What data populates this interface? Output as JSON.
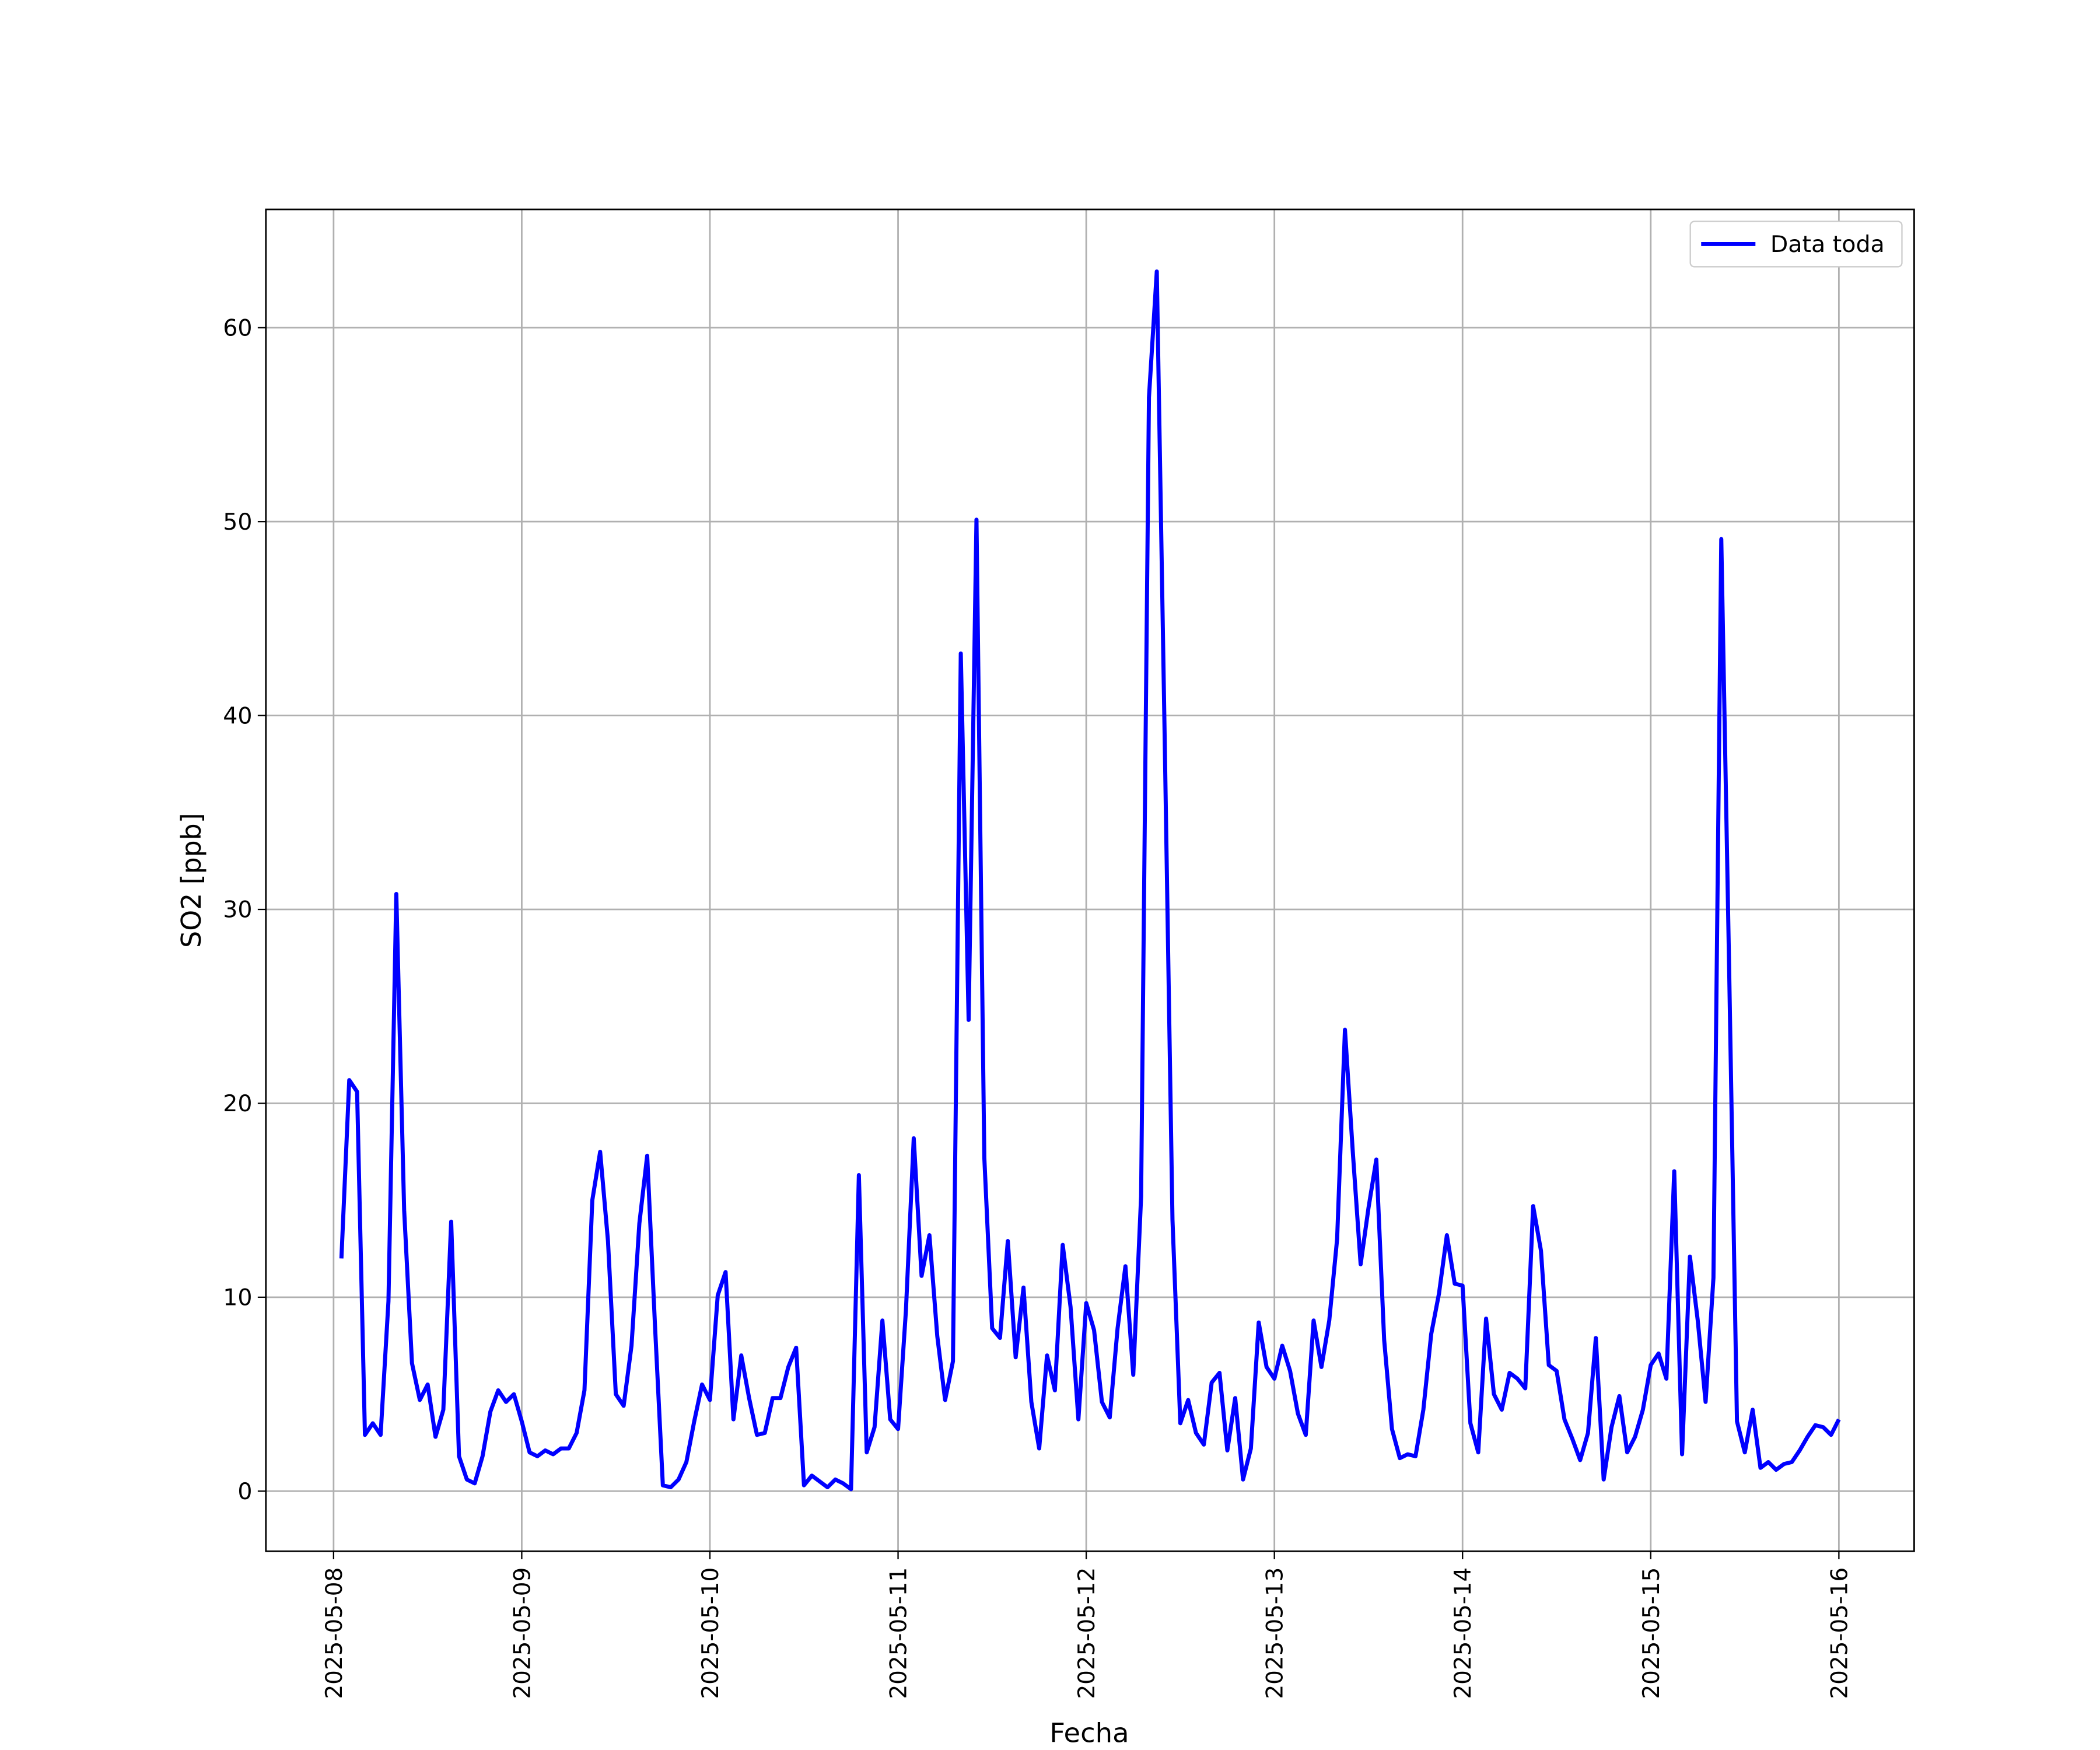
{
  "chart_data": {
    "type": "line",
    "xlabel": "Fecha",
    "ylabel": "SO2 [ppb]",
    "x": [
      "2025-05-08 01:00",
      "2025-05-08 02:00",
      "2025-05-08 03:00",
      "2025-05-08 04:00",
      "2025-05-08 05:00",
      "2025-05-08 06:00",
      "2025-05-08 07:00",
      "2025-05-08 08:00",
      "2025-05-08 09:00",
      "2025-05-08 10:00",
      "2025-05-08 11:00",
      "2025-05-08 12:00",
      "2025-05-08 13:00",
      "2025-05-08 14:00",
      "2025-05-08 15:00",
      "2025-05-08 16:00",
      "2025-05-08 17:00",
      "2025-05-08 18:00",
      "2025-05-08 19:00",
      "2025-05-08 20:00",
      "2025-05-08 21:00",
      "2025-05-08 22:00",
      "2025-05-08 23:00",
      "2025-05-09 00:00",
      "2025-05-09 01:00",
      "2025-05-09 02:00",
      "2025-05-09 03:00",
      "2025-05-09 04:00",
      "2025-05-09 05:00",
      "2025-05-09 06:00",
      "2025-05-09 07:00",
      "2025-05-09 08:00",
      "2025-05-09 09:00",
      "2025-05-09 10:00",
      "2025-05-09 11:00",
      "2025-05-09 12:00",
      "2025-05-09 13:00",
      "2025-05-09 14:00",
      "2025-05-09 15:00",
      "2025-05-09 16:00",
      "2025-05-09 17:00",
      "2025-05-09 18:00",
      "2025-05-09 19:00",
      "2025-05-09 20:00",
      "2025-05-09 21:00",
      "2025-05-09 22:00",
      "2025-05-09 23:00",
      "2025-05-10 00:00",
      "2025-05-10 01:00",
      "2025-05-10 02:00",
      "2025-05-10 03:00",
      "2025-05-10 04:00",
      "2025-05-10 05:00",
      "2025-05-10 06:00",
      "2025-05-10 07:00",
      "2025-05-10 08:00",
      "2025-05-10 09:00",
      "2025-05-10 10:00",
      "2025-05-10 11:00",
      "2025-05-10 12:00",
      "2025-05-10 13:00",
      "2025-05-10 14:00",
      "2025-05-10 15:00",
      "2025-05-10 16:00",
      "2025-05-10 17:00",
      "2025-05-10 18:00",
      "2025-05-10 19:00",
      "2025-05-10 20:00",
      "2025-05-10 21:00",
      "2025-05-10 22:00",
      "2025-05-10 23:00",
      "2025-05-11 00:00",
      "2025-05-11 01:00",
      "2025-05-11 02:00",
      "2025-05-11 03:00",
      "2025-05-11 04:00",
      "2025-05-11 05:00",
      "2025-05-11 06:00",
      "2025-05-11 07:00",
      "2025-05-11 08:00",
      "2025-05-11 09:00",
      "2025-05-11 10:00",
      "2025-05-11 11:00",
      "2025-05-11 12:00",
      "2025-05-11 13:00",
      "2025-05-11 14:00",
      "2025-05-11 15:00",
      "2025-05-11 16:00",
      "2025-05-11 17:00",
      "2025-05-11 18:00",
      "2025-05-11 19:00",
      "2025-05-11 20:00",
      "2025-05-11 21:00",
      "2025-05-11 22:00",
      "2025-05-11 23:00",
      "2025-05-12 00:00",
      "2025-05-12 01:00",
      "2025-05-12 02:00",
      "2025-05-12 03:00",
      "2025-05-12 04:00",
      "2025-05-12 05:00",
      "2025-05-12 06:00",
      "2025-05-12 07:00",
      "2025-05-12 08:00",
      "2025-05-12 09:00",
      "2025-05-12 10:00",
      "2025-05-12 11:00",
      "2025-05-12 12:00",
      "2025-05-12 13:00",
      "2025-05-12 14:00",
      "2025-05-12 15:00",
      "2025-05-12 16:00",
      "2025-05-12 17:00",
      "2025-05-12 18:00",
      "2025-05-12 19:00",
      "2025-05-12 20:00",
      "2025-05-12 21:00",
      "2025-05-12 22:00",
      "2025-05-12 23:00",
      "2025-05-13 00:00",
      "2025-05-13 01:00",
      "2025-05-13 02:00",
      "2025-05-13 03:00",
      "2025-05-13 04:00",
      "2025-05-13 05:00",
      "2025-05-13 06:00",
      "2025-05-13 07:00",
      "2025-05-13 08:00",
      "2025-05-13 09:00",
      "2025-05-13 10:00",
      "2025-05-13 11:00",
      "2025-05-13 12:00",
      "2025-05-13 13:00",
      "2025-05-13 14:00",
      "2025-05-13 15:00",
      "2025-05-13 16:00",
      "2025-05-13 17:00",
      "2025-05-13 18:00",
      "2025-05-13 19:00",
      "2025-05-13 20:00",
      "2025-05-13 21:00",
      "2025-05-13 22:00",
      "2025-05-13 23:00",
      "2025-05-14 00:00",
      "2025-05-14 01:00",
      "2025-05-14 02:00",
      "2025-05-14 03:00",
      "2025-05-14 04:00",
      "2025-05-14 05:00",
      "2025-05-14 06:00",
      "2025-05-14 07:00",
      "2025-05-14 08:00",
      "2025-05-14 09:00",
      "2025-05-14 10:00",
      "2025-05-14 11:00",
      "2025-05-14 12:00",
      "2025-05-14 13:00",
      "2025-05-14 14:00",
      "2025-05-14 15:00",
      "2025-05-14 16:00",
      "2025-05-14 17:00",
      "2025-05-14 18:00",
      "2025-05-14 19:00",
      "2025-05-14 20:00",
      "2025-05-14 21:00",
      "2025-05-14 22:00",
      "2025-05-14 23:00",
      "2025-05-15 00:00",
      "2025-05-15 01:00",
      "2025-05-15 02:00",
      "2025-05-15 03:00",
      "2025-05-15 04:00",
      "2025-05-15 05:00",
      "2025-05-15 06:00",
      "2025-05-15 07:00",
      "2025-05-15 08:00",
      "2025-05-15 09:00",
      "2025-05-15 10:00",
      "2025-05-15 11:00",
      "2025-05-15 12:00",
      "2025-05-15 13:00",
      "2025-05-15 14:00",
      "2025-05-15 15:00",
      "2025-05-15 16:00",
      "2025-05-15 17:00",
      "2025-05-15 18:00",
      "2025-05-15 19:00",
      "2025-05-15 20:00",
      "2025-05-15 21:00",
      "2025-05-15 22:00",
      "2025-05-15 23:00",
      "2025-05-16 00:00"
    ],
    "series": [
      {
        "name": "Data toda",
        "color": "#0000ff",
        "values": [
          12,
          21.2,
          20.6,
          2.9,
          3.5,
          2.9,
          9.8,
          30.8,
          14.5,
          6.6,
          4.7,
          5.5,
          2.8,
          4.2,
          13.9,
          1.8,
          0.6,
          0.4,
          1.8,
          4.1,
          5.2,
          4.6,
          5.0,
          3.6,
          2.0,
          1.8,
          2.1,
          1.9,
          2.2,
          2.2,
          3.0,
          5.2,
          15.0,
          17.5,
          12.9,
          5.0,
          4.4,
          7.5,
          13.8,
          17.3,
          8.5,
          0.3,
          0.2,
          0.6,
          1.5,
          3.6,
          5.5,
          4.7,
          10.1,
          11.3,
          3.7,
          7.0,
          4.8,
          2.9,
          3.0,
          4.8,
          4.8,
          6.4,
          7.4,
          0.3,
          0.8,
          0.5,
          0.2,
          0.6,
          0.4,
          0.1,
          16.3,
          2.0,
          3.3,
          8.8,
          3.7,
          3.2,
          9.3,
          18.2,
          11.1,
          13.2,
          8.0,
          4.7,
          6.7,
          43.2,
          24.3,
          50.1,
          17.2,
          8.4,
          7.9,
          12.9,
          6.9,
          10.5,
          4.6,
          2.2,
          7.0,
          5.2,
          12.7,
          9.5,
          3.7,
          9.7,
          8.3,
          4.6,
          3.8,
          8.4,
          11.6,
          6.0,
          15.2,
          56.4,
          62.9,
          39.0,
          14.0,
          3.5,
          4.7,
          3.0,
          2.4,
          5.6,
          6.1,
          2.1,
          4.8,
          0.6,
          2.2,
          8.7,
          6.4,
          5.8,
          7.5,
          6.2,
          4.0,
          2.9,
          8.8,
          6.4,
          8.8,
          13.0,
          23.8,
          17.5,
          11.7,
          14.6,
          17.1,
          7.8,
          3.2,
          1.7,
          1.9,
          1.8,
          4.2,
          8.1,
          10.2,
          13.2,
          10.7,
          10.6,
          3.5,
          2.0,
          8.9,
          5.0,
          4.2,
          6.1,
          5.8,
          5.3,
          14.7,
          12.4,
          6.5,
          6.2,
          3.7,
          2.7,
          1.6,
          3.0,
          7.9,
          0.6,
          3.3,
          4.9,
          2.0,
          2.8,
          4.2,
          6.5,
          7.1,
          5.8,
          16.5,
          1.9,
          12.1,
          8.8,
          4.6,
          11.0,
          49.1,
          27.0,
          3.6,
          2.0,
          4.2,
          1.2,
          1.5,
          1.1,
          1.4,
          1.5,
          2.1,
          2.8,
          3.4,
          3.3,
          2.9,
          3.7
        ]
      }
    ],
    "xlim": [
      "2025-05-07 15:22",
      "2025-05-16 09:36"
    ],
    "xticks": [
      "2025-05-08",
      "2025-05-09",
      "2025-05-10",
      "2025-05-11",
      "2025-05-12",
      "2025-05-13",
      "2025-05-14",
      "2025-05-15",
      "2025-05-16"
    ],
    "ylim": [
      -3.1,
      66.1
    ],
    "yticks": [
      0,
      10,
      20,
      30,
      40,
      50,
      60
    ],
    "grid": true,
    "legend": "upper right"
  }
}
